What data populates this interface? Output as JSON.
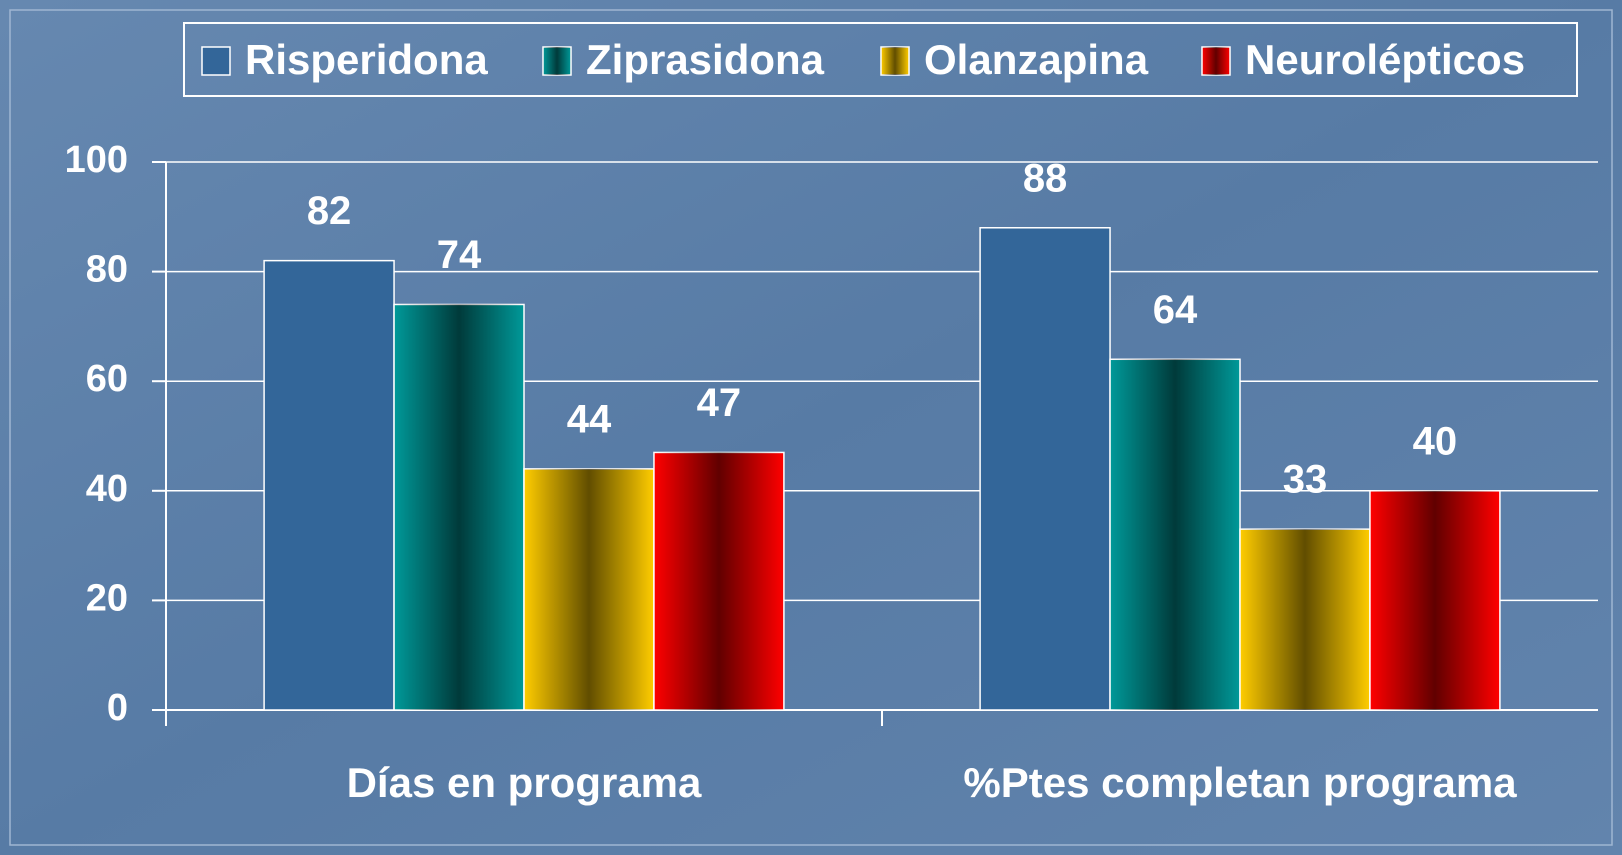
{
  "chart_data": {
    "type": "bar",
    "categories": [
      "Días en programa",
      "%Ptes completan programa"
    ],
    "series": [
      {
        "name": "Risperidona",
        "color": "#336699",
        "values": [
          82,
          88
        ]
      },
      {
        "name": "Ziprasidona",
        "color": "#009999",
        "values": [
          74,
          64
        ]
      },
      {
        "name": "Olanzapina",
        "color": "#ffcc00",
        "values": [
          44,
          33
        ]
      },
      {
        "name": "Neurolépticos",
        "color": "#ff0000",
        "values": [
          47,
          40
        ]
      }
    ],
    "ylim": [
      0,
      100
    ],
    "yticks": [
      0,
      20,
      40,
      60,
      80,
      100
    ],
    "grid": true,
    "legend": "top"
  }
}
